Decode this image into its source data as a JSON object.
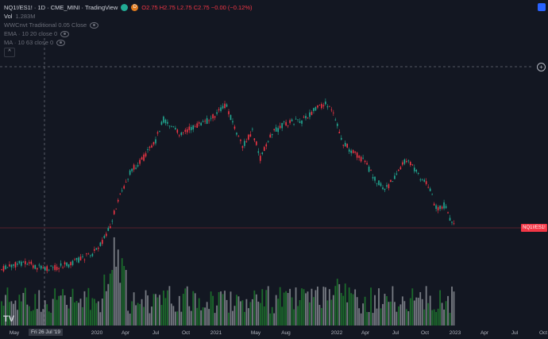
{
  "legend": {
    "symbol": "NQ1!/ES1! · 1D · CME_MINI · TradingView",
    "badge_g": "",
    "badge_d": "D",
    "ohlc": "O2.75 H2.75 L2.75 C2.75 −0.00 (−0.12%)",
    "vol_label": "Vol",
    "vol_value": "1.283M",
    "indicators": [
      "WWCnvt Traditional 0.05 Close",
      "EMA · 10 20 close 0",
      "MA · 10 63 close 0"
    ],
    "collapse_glyph": "^"
  },
  "price_tag": "NQ1!/ES1!",
  "cross_date": "Fri 26 Jul '19",
  "plus_glyph": "+",
  "logo": "TV",
  "x_axis": [
    "May",
    "2020",
    "Apr",
    "Jul",
    "Oct",
    "2021",
    "May",
    "Aug",
    "2022",
    "Apr",
    "Jul",
    "Oct",
    "2023",
    "Apr",
    "Jul",
    "Oct"
  ],
  "colors": {
    "up": "#22ab94",
    "down": "#f23645",
    "vol_up": "#1f7a2e",
    "vol_down": "#8a8d94",
    "bg": "#131722"
  },
  "series": {
    "price_y": [
      330,
      335,
      342,
      340,
      345,
      338,
      332,
      322,
      318,
      250,
      220,
      180,
      165,
      172,
      160,
      150,
      148,
      145,
      150,
      140,
      145,
      155,
      165,
      175,
      160,
      150,
      145,
      155,
      160,
      175,
      200,
      190,
      145,
      135,
      150,
      165,
      175,
      200,
      220,
      240,
      230,
      210,
      235,
      255,
      270,
      280
    ]
  }
}
